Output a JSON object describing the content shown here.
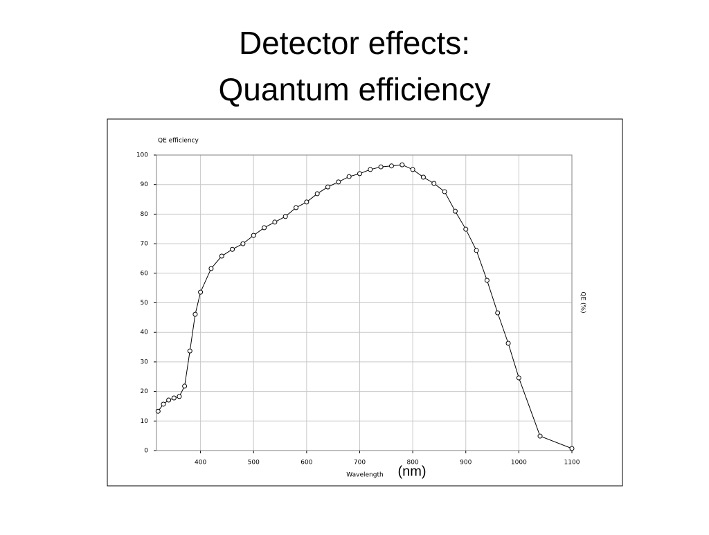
{
  "slide": {
    "title_lines": [
      "Detector effects:",
      "Quantum efficiency"
    ]
  },
  "chart_data": {
    "type": "line",
    "title": "QE efficiency",
    "x_label": "Wavelength",
    "x_unit": "(nm)",
    "y_axis_label": "QE (%)",
    "x": [
      320,
      330,
      340,
      350,
      360,
      370,
      380,
      390,
      400,
      420,
      440,
      460,
      480,
      500,
      520,
      540,
      560,
      580,
      600,
      620,
      640,
      660,
      680,
      700,
      720,
      740,
      760,
      780,
      800,
      820,
      840,
      860,
      880,
      900,
      920,
      940,
      960,
      980,
      1000,
      1040,
      1100
    ],
    "series": [
      {
        "name": "QE",
        "color": "#000000",
        "values": [
          13.3,
          15.7,
          17.1,
          17.8,
          18.3,
          21.8,
          33.7,
          46.1,
          53.6,
          61.6,
          65.8,
          68.1,
          70,
          72.8,
          75.4,
          77.3,
          79.2,
          82.2,
          84.1,
          86.9,
          89.2,
          90.9,
          92.7,
          93.7,
          95.1,
          96,
          96.3,
          96.7,
          95.1,
          92.5,
          90.4,
          87.6,
          81,
          74.9,
          67.7,
          57.6,
          46.6,
          36.3,
          24.6,
          4.9,
          0.7
        ]
      }
    ],
    "xlim": [
      317,
      1100
    ],
    "ylim": [
      0,
      100
    ],
    "xticks": [
      400,
      500,
      600,
      700,
      800,
      900,
      1000,
      1100
    ],
    "yticks": [
      0,
      10,
      20,
      30,
      40,
      50,
      60,
      70,
      80,
      90,
      100
    ],
    "grid": true
  }
}
